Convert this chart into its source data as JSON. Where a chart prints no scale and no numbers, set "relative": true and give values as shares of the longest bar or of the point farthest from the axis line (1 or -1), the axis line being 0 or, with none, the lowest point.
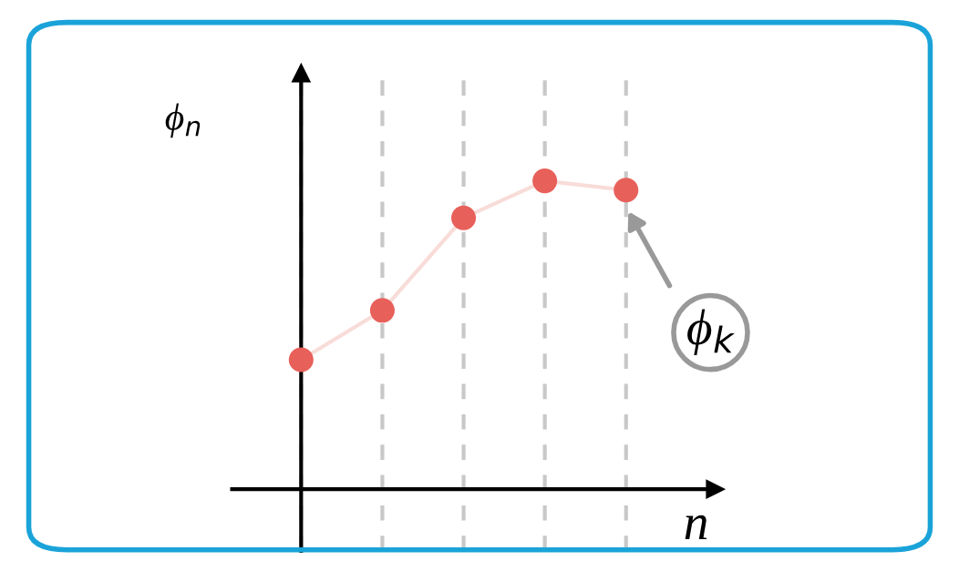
{
  "chart_data": {
    "type": "line",
    "relative": true,
    "xlabel": "n",
    "ylabel": "ϕ$_{n}$",
    "marker": "circle",
    "categories": [
      null,
      null,
      null,
      null,
      null
    ],
    "series": [
      {
        "color": "#f8dcd8",
        "colors": [
          "#e8605a",
          "#e8605a",
          "#e8605a",
          "#e8605a",
          "#e8605a"
        ],
        "values": [
          0.42,
          0.58,
          0.88,
          1.0,
          0.97
        ]
      }
    ],
    "grid": "x",
    "annotations": [
      "ϕ$_{k}$"
    ]
  }
}
